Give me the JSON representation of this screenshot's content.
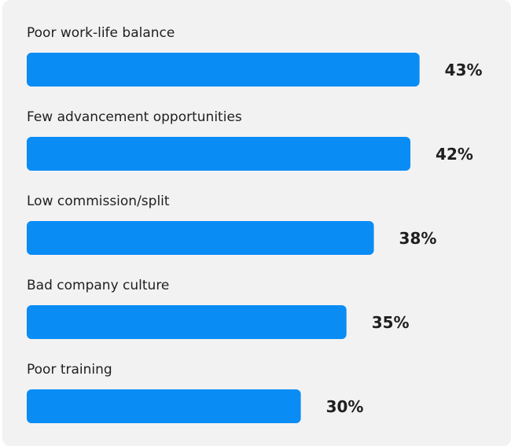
{
  "chart_data": {
    "type": "bar",
    "orientation": "horizontal",
    "categories": [
      "Poor work-life balance",
      "Few advancement opportunities",
      "Low commission/split",
      "Bad company culture",
      "Poor training"
    ],
    "values": [
      43,
      42,
      38,
      35,
      30
    ],
    "value_labels": [
      "43%",
      "42%",
      "38%",
      "35%",
      "30%"
    ],
    "color": "#0a8cf5"
  }
}
